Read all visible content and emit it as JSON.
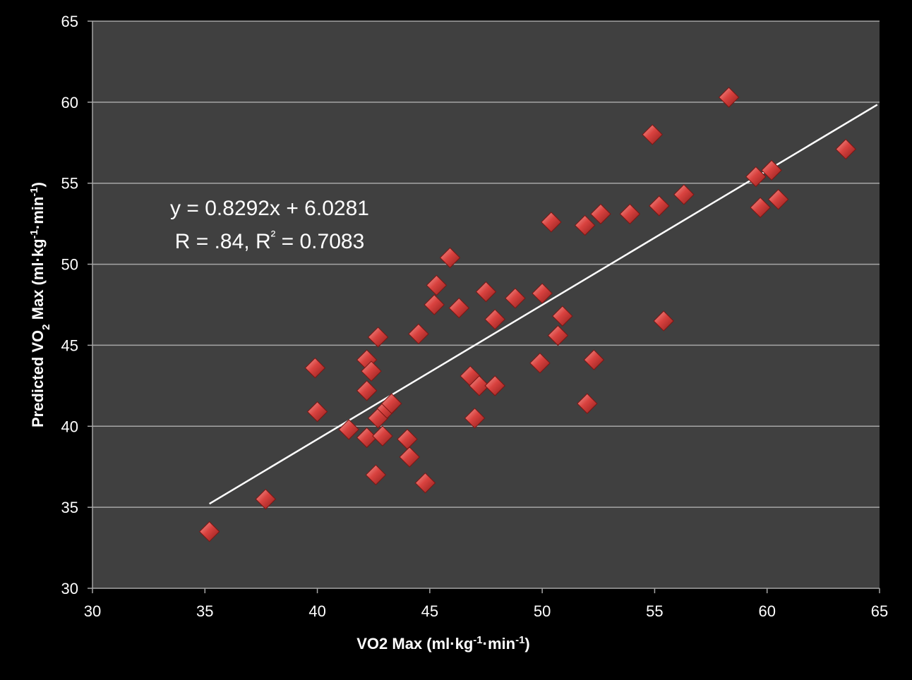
{
  "chart_data": {
    "type": "scatter",
    "title": "",
    "xlabel": {
      "main": "VO2 Max (ml·kg",
      "sup1": "-1",
      "mid": "·min",
      "sup2": "-1",
      "end": ")"
    },
    "ylabel": {
      "pre": "Predicted VO",
      "sub": "2",
      "post": " Max (ml·kg",
      "sup1": "-1",
      "mid": "·min",
      "sup2": "-1",
      "end": ")"
    },
    "xlim": [
      30,
      65
    ],
    "ylim": [
      30,
      65
    ],
    "xticks": [
      "30",
      "35",
      "40",
      "45",
      "50",
      "55",
      "60",
      "65"
    ],
    "yticks": [
      "30",
      "35",
      "40",
      "45",
      "50",
      "55",
      "60",
      "65"
    ],
    "grid": "horizontal",
    "background_color": "#404040",
    "marker_color": "#d9423f",
    "series": [
      {
        "points": [
          [
            35.2,
            33.5
          ],
          [
            37.7,
            35.5
          ],
          [
            39.9,
            43.6
          ],
          [
            40.0,
            40.9
          ],
          [
            41.4,
            39.8
          ],
          [
            42.2,
            44.1
          ],
          [
            42.2,
            42.2
          ],
          [
            42.2,
            39.3
          ],
          [
            42.4,
            43.4
          ],
          [
            42.6,
            37.0
          ],
          [
            42.7,
            45.5
          ],
          [
            42.7,
            40.5
          ],
          [
            42.9,
            39.4
          ],
          [
            43.1,
            41.1
          ],
          [
            43.3,
            41.4
          ],
          [
            44.0,
            39.2
          ],
          [
            44.1,
            38.1
          ],
          [
            44.5,
            45.7
          ],
          [
            44.8,
            36.5
          ],
          [
            45.2,
            47.5
          ],
          [
            45.3,
            48.7
          ],
          [
            45.9,
            50.4
          ],
          [
            46.3,
            47.3
          ],
          [
            46.8,
            43.1
          ],
          [
            47.0,
            40.5
          ],
          [
            47.2,
            42.5
          ],
          [
            47.5,
            48.3
          ],
          [
            47.9,
            42.5
          ],
          [
            47.9,
            46.6
          ],
          [
            48.8,
            47.9
          ],
          [
            49.9,
            43.9
          ],
          [
            50.0,
            48.2
          ],
          [
            50.4,
            52.6
          ],
          [
            50.7,
            45.6
          ],
          [
            50.9,
            46.8
          ],
          [
            51.9,
            52.4
          ],
          [
            52.0,
            41.4
          ],
          [
            52.3,
            44.1
          ],
          [
            52.6,
            53.1
          ],
          [
            53.9,
            53.1
          ],
          [
            54.9,
            58.0
          ],
          [
            55.2,
            53.6
          ],
          [
            55.4,
            46.5
          ],
          [
            56.3,
            54.3
          ],
          [
            58.3,
            60.3
          ],
          [
            59.5,
            55.4
          ],
          [
            59.7,
            53.5
          ],
          [
            60.2,
            55.8
          ],
          [
            60.5,
            54.0
          ],
          [
            63.5,
            57.1
          ]
        ]
      }
    ],
    "trendline": {
      "slope": 0.8292,
      "intercept": 6.0281,
      "x_range": [
        35.2,
        64.9
      ],
      "color": "#ffffff"
    },
    "annotation": {
      "line1": "y = 0.8292x + 6.0281",
      "line2_pre": "R = .84, R",
      "line2_sup": "²",
      "line2_post": " = 0.7083"
    }
  }
}
